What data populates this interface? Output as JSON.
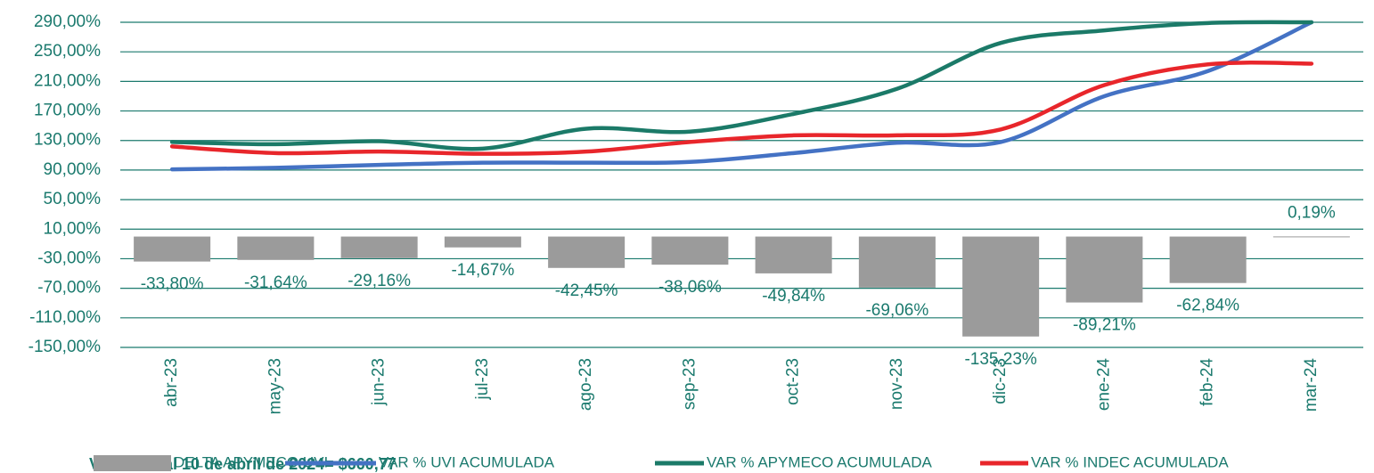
{
  "chart_data": {
    "type": "bar-line",
    "categories": [
      "abr-23",
      "may-23",
      "jun-23",
      "jul-23",
      "ago-23",
      "sep-23",
      "oct-23",
      "nov-23",
      "dic-23",
      "ene-24",
      "feb-24",
      "mar-24"
    ],
    "ylim": [
      -150,
      290
    ],
    "yticks": [
      {
        "value": -150,
        "label": "-150,00%"
      },
      {
        "value": -110,
        "label": "-110,00%"
      },
      {
        "value": -70,
        "label": "-70,00%"
      },
      {
        "value": -30,
        "label": "-30,00%"
      },
      {
        "value": 10,
        "label": "10,00%"
      },
      {
        "value": 50,
        "label": "50,00%"
      },
      {
        "value": 90,
        "label": "90,00%"
      },
      {
        "value": 130,
        "label": "130,00%"
      },
      {
        "value": 170,
        "label": "170,00%"
      },
      {
        "value": 210,
        "label": "210,00%"
      },
      {
        "value": 250,
        "label": "250,00%"
      },
      {
        "value": 290,
        "label": "290,00%"
      }
    ],
    "grid": true,
    "series": [
      {
        "name": "DELTA APYMECO UVI",
        "type": "bar",
        "color": "#9b9b9b",
        "values": [
          -33.8,
          -31.64,
          -29.16,
          -14.67,
          -42.45,
          -38.06,
          -49.84,
          -69.06,
          -135.23,
          -89.21,
          -62.84,
          0.19
        ],
        "value_labels": [
          "-33,80%",
          "-31,64%",
          "-29,16%",
          "-14,67%",
          "-42,45%",
          "-38,06%",
          "-49,84%",
          "-69,06%",
          "-135,23%",
          "-89,21%",
          "-62,84%",
          "0,19%"
        ]
      },
      {
        "name": "VAR % UVI ACUMULADA",
        "type": "line",
        "color": "#4472c4",
        "values": [
          91,
          93,
          97,
          100,
          100,
          101,
          113,
          127,
          128,
          190,
          224,
          290
        ]
      },
      {
        "name": "VAR % APYMECO ACUMULADA",
        "type": "line",
        "color": "#1b7a68",
        "values": [
          128,
          125,
          129,
          119,
          146,
          142,
          166,
          200,
          262,
          279,
          289,
          290
        ]
      },
      {
        "name": "VAR % INDEC ACUMULADA",
        "type": "line",
        "color": "#e8262b",
        "values": [
          122,
          113,
          115,
          112,
          115,
          128,
          137,
          137,
          145,
          205,
          233,
          234
        ]
      }
    ],
    "annotation": "Valor UVI al 10 de abril de 2024= $660,77"
  }
}
